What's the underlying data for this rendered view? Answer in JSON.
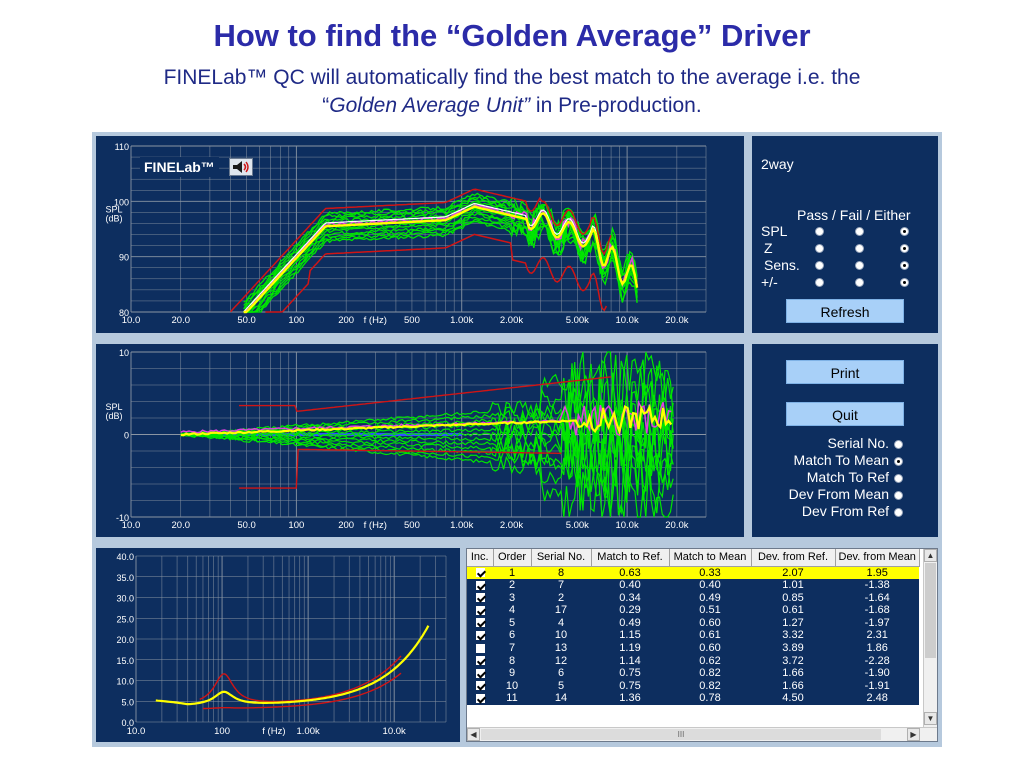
{
  "slide": {
    "title": "How to find the “Golden Average” Driver",
    "subtitle_line1": "FINELab™ QC will automatically find the best match to the average i.e. the",
    "subtitle_quote_open": "“",
    "subtitle_italic": "Golden Average Unit”",
    "subtitle_rest": " in Pre-production."
  },
  "app": {
    "badge": "FINELab™",
    "badge_icon": "speaker-icon",
    "colors": {
      "panel_bg": "#0d2e5f",
      "grid": "#8a95a3",
      "average": "#ffff00",
      "units": "#00e600",
      "limits": "#d01515",
      "reference": "#3050ff",
      "selected": "#e040e0",
      "highlight_row": "#ffff00"
    }
  },
  "spl_chart": {
    "ylabel": "SPL\n(dB)",
    "y_ticks": [
      "110",
      "100",
      "90",
      "80"
    ],
    "x_ticks": [
      "10.0",
      "20.0",
      "50.0",
      "100",
      "200",
      "f (Hz)",
      "500",
      "1.00k",
      "2.00k",
      "5.00k",
      "10.0k",
      "20.0k"
    ]
  },
  "dev_chart": {
    "ylabel": "SPL\n(dB)",
    "y_ticks": [
      "10",
      "0",
      "-10"
    ],
    "x_ticks": [
      "10.0",
      "20.0",
      "50.0",
      "100",
      "200",
      "f (Hz)",
      "500",
      "1.00k",
      "2.00k",
      "5.00k",
      "10.0k",
      "20.0k"
    ]
  },
  "imp_chart": {
    "y_ticks": [
      "40.0",
      "35.0",
      "30.0",
      "25.0",
      "20.0",
      "15.0",
      "10.0",
      "5.0",
      "0.0"
    ],
    "x_ticks": [
      "10.0",
      "100",
      "f (Hz)",
      "1.00k",
      "10.0k"
    ]
  },
  "controls": {
    "config_label": "2way",
    "pfe_header": "Pass / Fail / Either",
    "rows": [
      {
        "label": "SPL",
        "selected": 2
      },
      {
        "label": "Z",
        "selected": 2
      },
      {
        "label": "Sens.",
        "selected": 2
      },
      {
        "label": "+/-",
        "selected": 2
      }
    ],
    "refresh": "Refresh",
    "print": "Print",
    "quit": "Quit",
    "sort_options": [
      {
        "label": "Serial No.",
        "selected": false
      },
      {
        "label": "Match To Mean",
        "selected": true
      },
      {
        "label": "Match To Ref",
        "selected": false
      },
      {
        "label": "Dev From Mean",
        "selected": false
      },
      {
        "label": "Dev From Ref",
        "selected": false
      }
    ]
  },
  "table": {
    "columns": [
      "Inc.",
      "Order",
      "Serial No.",
      "Match to Ref.",
      "Match to Mean",
      "Dev. from Ref.",
      "Dev. from Mean"
    ],
    "scroll_thumb": "III",
    "rows": [
      {
        "inc": true,
        "order": "1",
        "serial": "8",
        "match_ref": "0.63",
        "match_mean": "0.33",
        "dev_ref": "2.07",
        "dev_mean": "1.95",
        "highlight": true
      },
      {
        "inc": true,
        "order": "2",
        "serial": "7",
        "match_ref": "0.40",
        "match_mean": "0.40",
        "dev_ref": "1.01",
        "dev_mean": "-1.38"
      },
      {
        "inc": true,
        "order": "3",
        "serial": "2",
        "match_ref": "0.34",
        "match_mean": "0.49",
        "dev_ref": "0.85",
        "dev_mean": "-1.64"
      },
      {
        "inc": true,
        "order": "4",
        "serial": "17",
        "match_ref": "0.29",
        "match_mean": "0.51",
        "dev_ref": "0.61",
        "dev_mean": "-1.68"
      },
      {
        "inc": true,
        "order": "5",
        "serial": "4",
        "match_ref": "0.49",
        "match_mean": "0.60",
        "dev_ref": "1.27",
        "dev_mean": "-1.97"
      },
      {
        "inc": true,
        "order": "6",
        "serial": "10",
        "match_ref": "1.15",
        "match_mean": "0.61",
        "dev_ref": "3.32",
        "dev_mean": "2.31"
      },
      {
        "inc": false,
        "order": "7",
        "serial": "13",
        "match_ref": "1.19",
        "match_mean": "0.60",
        "dev_ref": "3.89",
        "dev_mean": "1.86"
      },
      {
        "inc": true,
        "order": "8",
        "serial": "12",
        "match_ref": "1.14",
        "match_mean": "0.62",
        "dev_ref": "3.72",
        "dev_mean": "-2.28"
      },
      {
        "inc": true,
        "order": "9",
        "serial": "6",
        "match_ref": "0.75",
        "match_mean": "0.82",
        "dev_ref": "1.66",
        "dev_mean": "-1.90"
      },
      {
        "inc": true,
        "order": "10",
        "serial": "5",
        "match_ref": "0.75",
        "match_mean": "0.82",
        "dev_ref": "1.66",
        "dev_mean": "-1.91"
      },
      {
        "inc": true,
        "order": "11",
        "serial": "14",
        "match_ref": "1.36",
        "match_mean": "0.78",
        "dev_ref": "4.50",
        "dev_mean": "2.48"
      }
    ]
  }
}
